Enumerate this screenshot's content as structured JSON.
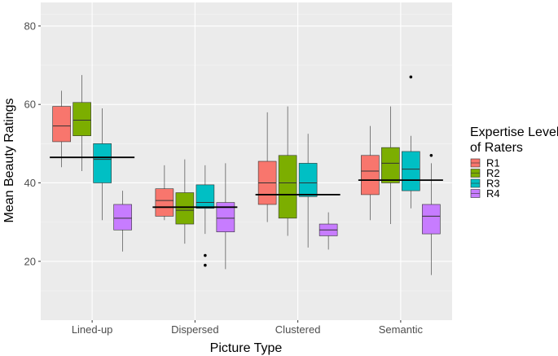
{
  "chart_data": {
    "type": "boxplot",
    "title": "",
    "xlabel": "Picture Type",
    "ylabel": "Mean Beauty Ratings",
    "ylim": [
      5,
      86
    ],
    "yticks": [
      20,
      40,
      60,
      80
    ],
    "grid": true,
    "categories": [
      "Lined-up",
      "Dispersed",
      "Clustered",
      "Semantic"
    ],
    "legend": {
      "title_line1": "Expertise Level",
      "title_line2": "of Raters",
      "position": "right"
    },
    "series": [
      {
        "name": "R1",
        "color": "#F8766D",
        "boxes": [
          {
            "min": 44,
            "q1": 50.5,
            "median": 54.5,
            "q3": 59.5,
            "max": 63.5,
            "outliers": []
          },
          {
            "min": 30.5,
            "q1": 31.5,
            "median": 35.5,
            "q3": 38.5,
            "max": 44.5,
            "outliers": []
          },
          {
            "min": 30,
            "q1": 34.5,
            "median": 40,
            "q3": 45.5,
            "max": 58,
            "outliers": []
          },
          {
            "min": 30.5,
            "q1": 37,
            "median": 43,
            "q3": 47,
            "max": 54.5,
            "outliers": []
          }
        ]
      },
      {
        "name": "R2",
        "color": "#7CAE00",
        "boxes": [
          {
            "min": 43,
            "q1": 52,
            "median": 56,
            "q3": 60.5,
            "max": 67.5,
            "outliers": []
          },
          {
            "min": 24.5,
            "q1": 29.5,
            "median": 33,
            "q3": 37.5,
            "max": 46,
            "outliers": []
          },
          {
            "min": 26.5,
            "q1": 31,
            "median": 40,
            "q3": 47,
            "max": 59.5,
            "outliers": []
          },
          {
            "min": 29.5,
            "q1": 40,
            "median": 45,
            "q3": 49,
            "max": 59.5,
            "outliers": []
          }
        ]
      },
      {
        "name": "R3",
        "color": "#00BFC4",
        "boxes": [
          {
            "min": 30.5,
            "q1": 40,
            "median": 46,
            "q3": 50,
            "max": 59,
            "outliers": []
          },
          {
            "min": 27,
            "q1": 33.5,
            "median": 35,
            "q3": 39.5,
            "max": 44.5,
            "outliers": [
              21.5,
              19
            ]
          },
          {
            "min": 23.5,
            "q1": 36.5,
            "median": 40,
            "q3": 45,
            "max": 52.5,
            "outliers": []
          },
          {
            "min": 33.5,
            "q1": 38,
            "median": 43.5,
            "q3": 48,
            "max": 52,
            "outliers": [
              67
            ]
          }
        ]
      },
      {
        "name": "R4",
        "color": "#C77CFF",
        "boxes": [
          {
            "min": 22.5,
            "q1": 28,
            "median": 31,
            "q3": 34.5,
            "max": 38,
            "outliers": []
          },
          {
            "min": 18,
            "q1": 27.5,
            "median": 31,
            "q3": 35,
            "max": 45,
            "outliers": []
          },
          {
            "min": 23,
            "q1": 26.5,
            "median": 28,
            "q3": 29.5,
            "max": 32.5,
            "outliers": []
          },
          {
            "min": 16.5,
            "q1": 27,
            "median": 31.5,
            "q3": 34.5,
            "max": 45,
            "outliers": [
              47
            ]
          }
        ]
      }
    ],
    "category_means": [
      46.5,
      33.8,
      37,
      40.7
    ]
  }
}
